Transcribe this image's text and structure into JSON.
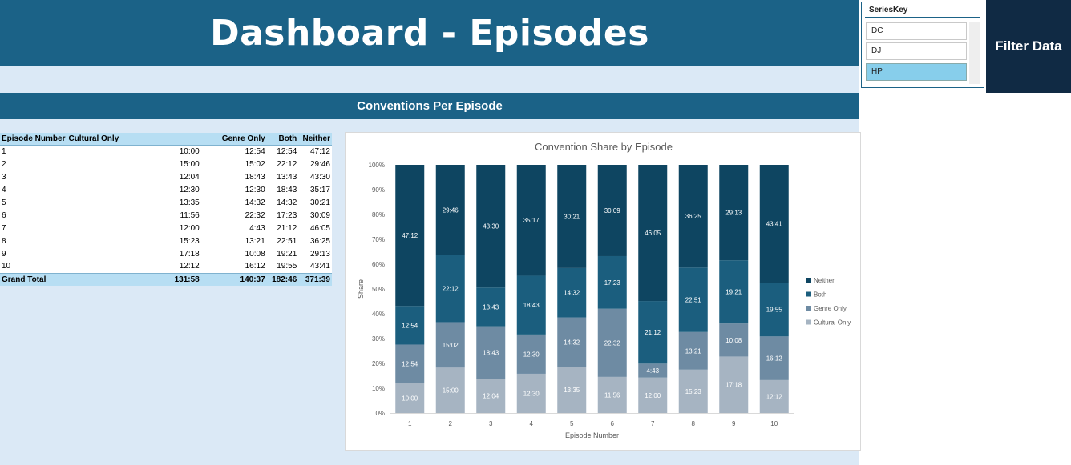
{
  "header": {
    "title": "Dashboard - Episodes"
  },
  "section": {
    "title": "Conventions Per Episode"
  },
  "slicer": {
    "title": "SeriesKey",
    "items": [
      {
        "label": "DC",
        "selected": false
      },
      {
        "label": "DJ",
        "selected": false
      },
      {
        "label": "HP",
        "selected": true
      }
    ]
  },
  "filter_button": {
    "label": "Filter Data"
  },
  "table": {
    "headers": [
      "Episode Number",
      "Cultural Only",
      "Genre Only",
      "Both",
      "Neither"
    ],
    "rows": [
      [
        "1",
        "10:00",
        "12:54",
        "12:54",
        "47:12"
      ],
      [
        "2",
        "15:00",
        "15:02",
        "22:12",
        "29:46"
      ],
      [
        "3",
        "12:04",
        "18:43",
        "13:43",
        "43:30"
      ],
      [
        "4",
        "12:30",
        "12:30",
        "18:43",
        "35:17"
      ],
      [
        "5",
        "13:35",
        "14:32",
        "14:32",
        "30:21"
      ],
      [
        "6",
        "11:56",
        "22:32",
        "17:23",
        "30:09"
      ],
      [
        "7",
        "12:00",
        "4:43",
        "21:12",
        "46:05"
      ],
      [
        "8",
        "15:23",
        "13:21",
        "22:51",
        "36:25"
      ],
      [
        "9",
        "17:18",
        "10:08",
        "19:21",
        "29:13"
      ],
      [
        "10",
        "12:12",
        "16:12",
        "19:55",
        "43:41"
      ]
    ],
    "total": [
      "Grand Total",
      "131:58",
      "140:37",
      "182:46",
      "371:39"
    ]
  },
  "chart_data": {
    "type": "bar",
    "stacked": "percent",
    "title": "Convention Share by Episode",
    "xlabel": "Episode Number",
    "ylabel": "Share",
    "categories": [
      "1",
      "2",
      "3",
      "4",
      "5",
      "6",
      "7",
      "8",
      "9",
      "10"
    ],
    "y_ticks": [
      "0%",
      "10%",
      "20%",
      "30%",
      "40%",
      "50%",
      "60%",
      "70%",
      "80%",
      "90%",
      "100%"
    ],
    "ylim": [
      0,
      1
    ],
    "legend_position": "right",
    "series": [
      {
        "name": "Cultural Only",
        "color": "#a6b4c2",
        "labels": [
          "10:00",
          "15:00",
          "12:04",
          "12:30",
          "13:35",
          "11:56",
          "12:00",
          "15:23",
          "17:18",
          "12:12"
        ]
      },
      {
        "name": "Genre Only",
        "color": "#6e8ba3",
        "labels": [
          "12:54",
          "15:02",
          "18:43",
          "12:30",
          "14:32",
          "22:32",
          "4:43",
          "13:21",
          "10:08",
          "16:12"
        ]
      },
      {
        "name": "Both",
        "color": "#1b5e7e",
        "labels": [
          "12:54",
          "22:12",
          "13:43",
          "18:43",
          "14:32",
          "17:23",
          "21:12",
          "22:51",
          "19:21",
          "19:55"
        ]
      },
      {
        "name": "Neither",
        "color": "#0e4561",
        "labels": [
          "47:12",
          "29:46",
          "43:30",
          "35:17",
          "30:21",
          "30:09",
          "46:05",
          "36:25",
          "29:13",
          "43:41"
        ]
      }
    ]
  }
}
